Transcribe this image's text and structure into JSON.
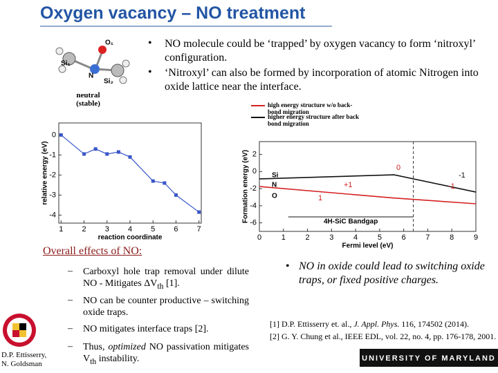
{
  "header": {
    "title": "Oxygen vacancy – NO treatment"
  },
  "top_bullets": [
    "NO molecule could be ‘trapped’ by oxygen vacancy to form ‘nitroxyl’ configuration.",
    "‘Nitroxyl’ can also be formed by incorporation of atomic Nitrogen into oxide lattice near the interface."
  ],
  "molecule": {
    "labels": [
      "Si₁",
      "O₁",
      "N",
      "Si₂"
    ],
    "caption": "neutral (stable)"
  },
  "chart_data": [
    {
      "type": "line",
      "y_label": "relative energy (eV)",
      "x_label": "reaction coordinate",
      "x": [
        1,
        2,
        2.5,
        3,
        3.5,
        4,
        5,
        5.5,
        6,
        7
      ],
      "series": [
        {
          "color": "#3a56c8",
          "values": [
            0,
            -0.95,
            -0.7,
            -0.95,
            -0.85,
            -1.1,
            -2.3,
            -2.4,
            -3.0,
            -3.85
          ]
        }
      ],
      "xlim": [
        0.9,
        7.1
      ],
      "ylim": [
        -4.4,
        0.6
      ],
      "xticks": [
        1,
        2,
        3,
        4,
        5,
        6,
        7
      ],
      "yticks": [
        0,
        -1,
        -2,
        -3,
        -4
      ]
    },
    {
      "type": "line",
      "y_label": "Formation energy (eV)",
      "x_label": "Fermi level (eV)",
      "x": [
        0,
        5.6,
        9
      ],
      "series": [
        {
          "name": "high energy structure w/o back-bond migration",
          "color": "#d42020",
          "values": [
            -1.75,
            -3.1,
            -3.77
          ]
        },
        {
          "name": "higher energy structure after back bond migration",
          "color": "#111111",
          "values": [
            -0.86,
            -0.38,
            -2.4
          ]
        }
      ],
      "xlim": [
        0,
        9
      ],
      "ylim": [
        -7,
        3.5
      ],
      "xticks": [
        0,
        1,
        2,
        3,
        4,
        5,
        6,
        7,
        8,
        9
      ],
      "yticks": [
        2,
        0,
        -2,
        -4,
        -6
      ],
      "bandgap": {
        "label": "4H-SiC Bandgap",
        "range": [
          1.2,
          6.4
        ]
      },
      "annotations": [
        "0",
        "-1",
        "+1",
        "-1",
        "1"
      ],
      "atom_labels": [
        "Si",
        "N",
        "O"
      ]
    }
  ],
  "effects": {
    "heading": "Overall effects of NO:",
    "items": [
      [
        "Carboxyl hole trap removal under dilute NO - Mitigates ΔV",
        {
          "text": "th",
          "style": "sub"
        },
        " [1]."
      ],
      [
        "NO can be counter productive – switching oxide traps."
      ],
      [
        "NO mitigates interface traps [2]."
      ],
      [
        "Thus, ",
        {
          "text": "optimized",
          "style": "italic"
        },
        " NO passivation mitigates V",
        {
          "text": "th",
          "style": "sub"
        },
        " instability."
      ]
    ]
  },
  "side_bullet": "NO in oxide could lead to switching oxide traps, or fixed positive charges.",
  "references": [
    [
      "[1] D.P. Ettisserry et. al., ",
      {
        "text": "J. Appl. Phys.",
        "style": "italic"
      },
      " 116, 174502 (2014)."
    ],
    [
      "[2] G. Y. Chung et al., IEEE EDL, vol. 22, no. 4, pp. 176-178, 2001."
    ]
  ],
  "author": "D.P. Ettisserry, N. Goldsman",
  "footer": "UNIVERSITY OF MARYLAND"
}
